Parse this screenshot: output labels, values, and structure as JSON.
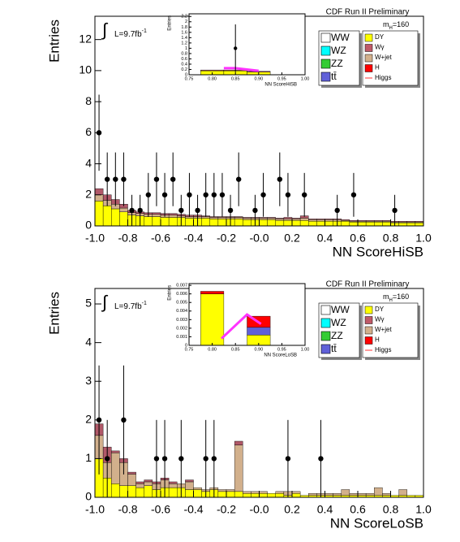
{
  "chart_data": [
    {
      "type": "stacked_histogram",
      "annotation_title": "CDF Run II Preliminary",
      "mass_label": [
        "m",
        "H",
        "=160"
      ],
      "lumi_label": [
        "∫",
        "L=9.7fb",
        "-1"
      ],
      "xlabel": "NN ScoreHiSB",
      "ylabel": "Entries",
      "xlim": [
        -1,
        1
      ],
      "ylim": [
        0,
        13.5
      ],
      "xticks": [
        {
          "value": -1,
          "label": "-1.0"
        },
        -0.8,
        -0.6,
        -0.4,
        -0.2,
        {
          "value": 0,
          "label": "-0.0"
        },
        0.2,
        0.4,
        0.6,
        0.8,
        {
          "value": 1,
          "label": "1.0"
        }
      ],
      "yticks": [
        0,
        2,
        4,
        6,
        8,
        10,
        12
      ],
      "legend": [
        {
          "name": "WW",
          "color": "#ffffff"
        },
        {
          "name": "WZ",
          "color": "#00ffff"
        },
        {
          "name": "ZZ",
          "color": "#33cc33"
        },
        {
          "name": "tt̄",
          "color": "#6060d8"
        },
        {
          "name": "DY",
          "color": "#ffff00"
        },
        {
          "name": "Wγ",
          "color": "#c05a68"
        },
        {
          "name": "W+jet",
          "color": "#d2b08c"
        },
        {
          "name": "H",
          "color": "#ff0000"
        },
        {
          "name": "Higgs",
          "color": "#ff3333",
          "style": "line"
        }
      ],
      "bins": [
        -1,
        -0.95,
        -0.9,
        -0.85,
        -0.8,
        -0.75,
        -0.7,
        -0.65,
        -0.6,
        -0.55,
        -0.5,
        -0.45,
        -0.4,
        -0.35,
        -0.3,
        -0.25,
        -0.2,
        -0.15,
        -0.1,
        -0.05,
        0,
        0.05,
        0.1,
        0.15,
        0.2,
        0.25,
        0.3,
        0.35,
        0.4,
        0.45,
        0.5,
        0.55,
        0.6,
        0.65,
        0.7,
        0.75,
        0.8,
        0.85,
        0.9,
        0.95,
        1
      ],
      "series": [
        {
          "color": "#ffff00",
          "values": [
            1.6,
            1.3,
            1.1,
            0.9,
            0.7,
            0.65,
            0.6,
            0.6,
            0.55,
            0.55,
            0.55,
            0.5,
            0.5,
            0.5,
            0.45,
            0.45,
            0.45,
            0.45,
            0.4,
            0.4,
            0.4,
            0.4,
            0.35,
            0.35,
            0.35,
            0.35,
            0.3,
            0.3,
            0.3,
            0.3,
            0.3,
            0.25,
            0.25,
            0.25,
            0.25,
            0.25,
            0.2,
            0.2,
            0.2,
            0.2
          ]
        },
        {
          "color": "#d2b08c",
          "values": [
            0.4,
            0.35,
            0.3,
            0.25,
            0.15,
            0.15,
            0.15,
            0.15,
            0.15,
            0.15,
            0.1,
            0.1,
            0.1,
            0.1,
            0.1,
            0.1,
            0.1,
            0.1,
            0.1,
            0.1,
            0.1,
            0.1,
            0.1,
            0.1,
            0.1,
            0.15,
            0.1,
            0.1,
            0.1,
            0.1,
            0.05,
            0.05,
            0.05,
            0.05,
            0.05,
            0.05,
            0.05,
            0.05,
            0.05,
            0.05
          ]
        },
        {
          "color": "#b05868",
          "values": [
            0.4,
            0.35,
            0.3,
            0.25,
            0.15,
            0.1,
            0.1,
            0.1,
            0.1,
            0.1,
            0.1,
            0.1,
            0.1,
            0.05,
            0.05,
            0.05,
            0.05,
            0.05,
            0.05,
            0.05,
            0.05,
            0.05,
            0.05,
            0.1,
            0.05,
            0.15,
            0.05,
            0.05,
            0.05,
            0.05,
            0.05,
            0.05,
            0.05,
            0.05,
            0.05,
            0.05,
            0.05,
            0.05,
            0.05,
            0.05
          ]
        }
      ],
      "data": {
        "x": [
          -0.975,
          -0.925,
          -0.875,
          -0.825,
          -0.775,
          -0.725,
          -0.675,
          -0.625,
          -0.575,
          -0.525,
          -0.475,
          -0.425,
          -0.375,
          -0.325,
          -0.275,
          -0.225,
          -0.175,
          -0.125,
          -0.025,
          0.025,
          0.125,
          0.175,
          0.275,
          0.475,
          0.575,
          0.825
        ],
        "values": [
          6,
          3,
          3,
          3,
          1,
          1,
          2,
          3,
          2,
          3,
          1,
          2,
          1,
          2,
          2,
          2,
          1,
          3,
          1,
          2,
          3,
          2,
          2,
          1,
          2,
          1
        ],
        "errors": [
          2.45,
          1.73,
          1.73,
          1.73,
          1,
          1,
          1.41,
          1.73,
          1.41,
          1.73,
          1,
          1.41,
          1,
          1.41,
          1.41,
          1.41,
          1,
          1.73,
          1,
          1.41,
          1.73,
          1.41,
          1.41,
          1,
          1.41,
          1
        ]
      }
    },
    {
      "type": "stacked_histogram",
      "xlabel": "NN ScoreHiSB",
      "ylabel": "Entries",
      "xlim": [
        0.75,
        1
      ],
      "ylim": [
        0,
        2.3
      ],
      "xticks": [
        0.75,
        {
          "value": 0.8,
          "label": "0.80"
        },
        0.85,
        {
          "value": 0.9,
          "label": "0.90"
        },
        0.95,
        {
          "value": 1,
          "label": "1.00"
        }
      ],
      "yticks": [
        0,
        0.2,
        0.4,
        0.6,
        0.8,
        1,
        1.2,
        1.4,
        1.6,
        1.8,
        2,
        2.2
      ],
      "bins": [
        0.775,
        0.825,
        0.875,
        0.925
      ],
      "series": [
        {
          "color": "#ffff00",
          "values": [
            0.15,
            0.15,
            0.1
          ]
        },
        {
          "color": "#b05868",
          "values": [
            0.03,
            0.03,
            0.03
          ]
        }
      ],
      "higgs": {
        "color": "#ff33ff",
        "x": [
          0.825,
          0.85,
          0.9
        ],
        "values": [
          0.25,
          0.25,
          0.15
        ]
      },
      "data": {
        "x": [
          0.85
        ],
        "values": [
          1
        ],
        "errors": [
          0.9
        ]
      }
    },
    {
      "type": "stacked_histogram",
      "annotation_title": "CDF Run II Preliminary",
      "mass_label": [
        "m",
        "H",
        "=160"
      ],
      "lumi_label": [
        "∫",
        "L=9.7fb",
        "-1"
      ],
      "xlabel": "NN ScoreLoSB",
      "ylabel": "Entries",
      "xlim": [
        -1,
        1
      ],
      "ylim": [
        0,
        5.4
      ],
      "xticks": [
        {
          "value": -1,
          "label": "-1.0"
        },
        -0.8,
        -0.6,
        -0.4,
        -0.2,
        {
          "value": 0,
          "label": "-0.0"
        },
        0.2,
        0.4,
        0.6,
        0.8,
        {
          "value": 1,
          "label": "1.0"
        }
      ],
      "yticks": [
        0,
        1,
        2,
        3,
        4,
        5
      ],
      "legend": [
        {
          "name": "WW",
          "color": "#ffffff"
        },
        {
          "name": "WZ",
          "color": "#00ffff"
        },
        {
          "name": "ZZ",
          "color": "#33cc33"
        },
        {
          "name": "tt̄",
          "color": "#6060d8"
        },
        {
          "name": "DY",
          "color": "#ffff00"
        },
        {
          "name": "Wγ",
          "color": "#c05a68"
        },
        {
          "name": "W+jet",
          "color": "#d2b08c"
        },
        {
          "name": "H",
          "color": "#ff0000"
        },
        {
          "name": "Higgs",
          "color": "#ff3333",
          "style": "line"
        }
      ],
      "bins": [
        -1,
        -0.95,
        -0.9,
        -0.85,
        -0.8,
        -0.75,
        -0.7,
        -0.65,
        -0.6,
        -0.55,
        -0.5,
        -0.45,
        -0.4,
        -0.35,
        -0.3,
        -0.25,
        -0.2,
        -0.15,
        -0.1,
        -0.05,
        0,
        0.05,
        0.1,
        0.15,
        0.2,
        0.25,
        0.3,
        0.35,
        0.4,
        0.45,
        0.5,
        0.55,
        0.6,
        0.65,
        0.7,
        0.75,
        0.8,
        0.85,
        0.9,
        0.95,
        1
      ],
      "series": [
        {
          "color": "#ffff00",
          "values": [
            1.0,
            0.5,
            0.35,
            0.3,
            0.3,
            0.25,
            0.3,
            0.2,
            0.25,
            0.25,
            0.25,
            0.2,
            0.2,
            0.15,
            0.2,
            0.15,
            0.15,
            0.15,
            0.1,
            0.1,
            0.1,
            0.1,
            0.1,
            0.05,
            0.1,
            0.05,
            0.05,
            0.05,
            0.05,
            0.05,
            0.05,
            0.05,
            0.05,
            0.05,
            0.05,
            0.05,
            0.05,
            0.05,
            0.05,
            0.05
          ]
        },
        {
          "color": "#d2b08c",
          "values": [
            0.6,
            0.4,
            0.8,
            0.6,
            0.3,
            0.1,
            0.1,
            0.15,
            0.2,
            0.1,
            0.1,
            0.2,
            0.05,
            0.05,
            0.05,
            0.05,
            0.05,
            1.2,
            0.05,
            0.05,
            0.05,
            0,
            0.05,
            0.1,
            0.05,
            0,
            0.05,
            0.05,
            0.05,
            0.05,
            0.15,
            0.05,
            0.05,
            0.05,
            0.2,
            0.05,
            0,
            0.15,
            0,
            0
          ]
        },
        {
          "color": "#b05868",
          "values": [
            0.3,
            0.4,
            0.05,
            0.1,
            0.05,
            0.05,
            0.05,
            0.05,
            0.05,
            0.05,
            0,
            0.05,
            0,
            0,
            0,
            0,
            0,
            0.1,
            0,
            0,
            0,
            0,
            0,
            0,
            0,
            0,
            0,
            0,
            0,
            0,
            0,
            0,
            0,
            0,
            0,
            0,
            0,
            0,
            0,
            0
          ]
        }
      ],
      "data": {
        "x": [
          -0.975,
          -0.925,
          -0.825,
          -0.625,
          -0.575,
          -0.475,
          -0.325,
          -0.275,
          0.175,
          0.375
        ],
        "values": [
          2,
          1,
          2,
          1,
          1,
          1,
          1,
          1,
          1,
          1
        ],
        "errors": [
          1.41,
          1,
          1.41,
          1,
          1,
          1,
          1,
          1,
          1,
          1
        ]
      }
    },
    {
      "type": "stacked_histogram",
      "xlabel": "NN ScoreLoSB",
      "ylabel": "Entries",
      "xlim": [
        0.75,
        1
      ],
      "ylim": [
        0,
        0.0072
      ],
      "xticks": [
        0.75,
        {
          "value": 0.8,
          "label": "0.80"
        },
        0.85,
        {
          "value": 0.9,
          "label": "0.90"
        },
        0.95,
        {
          "value": 1,
          "label": "1.00"
        }
      ],
      "yticks": [
        0,
        0.001,
        0.002,
        0.003,
        0.004,
        0.005,
        0.006,
        0.007
      ],
      "bins": [
        0.775,
        0.825,
        0.875,
        0.925
      ],
      "series": [
        {
          "color": "#ffff00",
          "values": [
            0.006,
            0,
            0.0012
          ]
        },
        {
          "color": "#6060d8",
          "values": [
            0,
            0,
            0.0009
          ]
        },
        {
          "color": "#ff0000",
          "values": [
            0.0003,
            0,
            0.0013
          ]
        }
      ],
      "higgs": {
        "color": "#ff33ff",
        "x": [
          0.82,
          0.875,
          0.905
        ],
        "values": [
          0.0008,
          0.0036,
          0.0025
        ]
      }
    }
  ]
}
